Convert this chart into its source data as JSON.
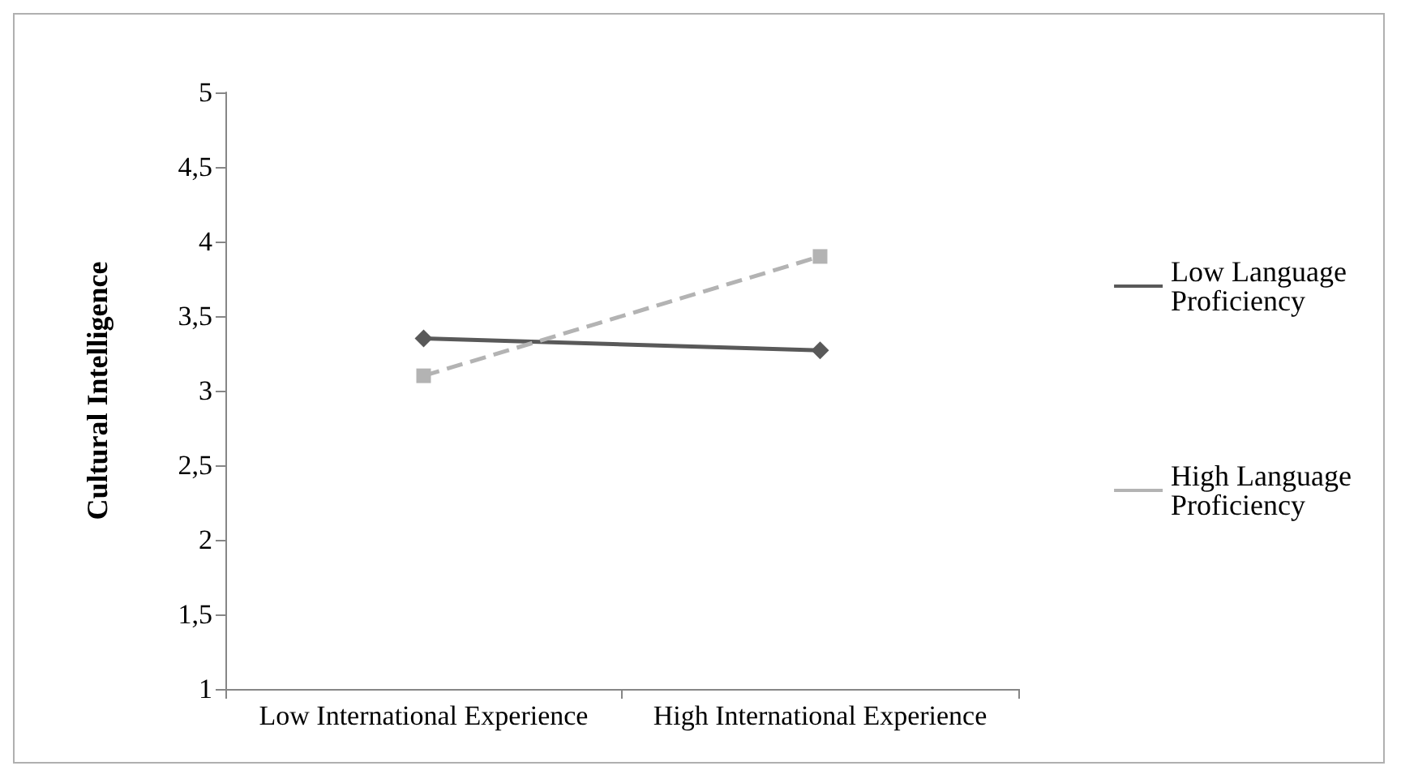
{
  "chart_data": {
    "type": "line",
    "ylabel": "Cultural Intelligence",
    "categories": [
      "Low International Experience",
      "High International Experience"
    ],
    "series": [
      {
        "name": "Low Language Proficiency",
        "color": "#595959",
        "values": [
          3.35,
          3.27
        ],
        "marker": "diamond",
        "line_style": "solid"
      },
      {
        "name": "High Language Proficiency",
        "color": "#b3b3b3",
        "values": [
          3.1,
          3.9
        ],
        "marker": "square",
        "line_style": "dashed"
      }
    ],
    "ylim": [
      1,
      5
    ],
    "yticks": [
      1,
      {
        "value": 1.5,
        "label": "1,5"
      },
      2,
      {
        "value": 2.5,
        "label": "2,5"
      },
      3,
      {
        "value": 3.5,
        "label": "3,5"
      },
      4,
      {
        "value": 4.5,
        "label": "4,5"
      },
      5
    ],
    "grid": false,
    "legend": "right"
  }
}
